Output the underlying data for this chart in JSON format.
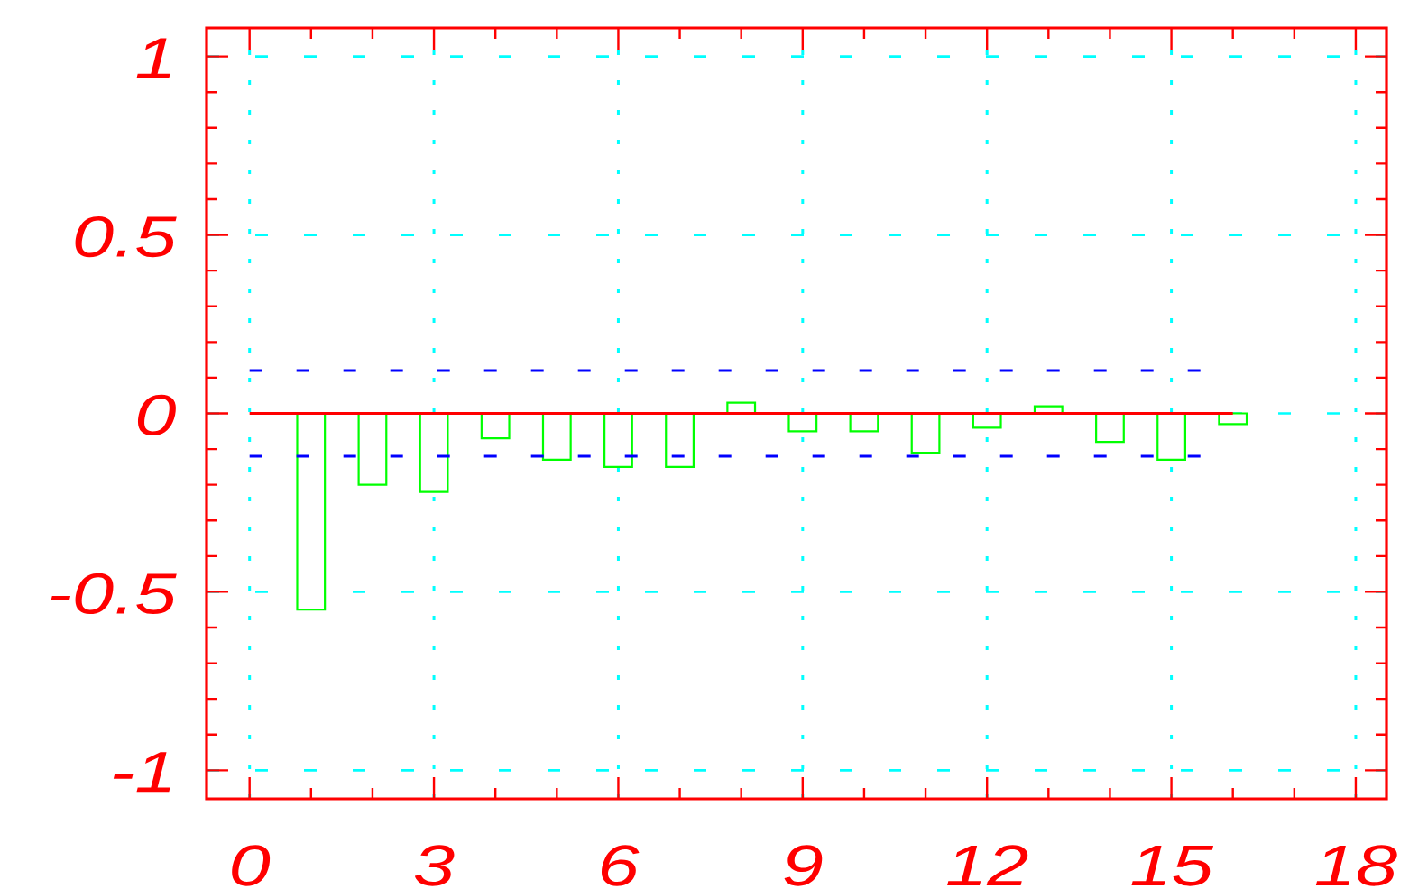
{
  "chart_data": {
    "type": "bar",
    "x": [
      1,
      2,
      3,
      4,
      5,
      6,
      7,
      8,
      9,
      10,
      11,
      12,
      13,
      14,
      15,
      16
    ],
    "values": [
      -0.55,
      -0.2,
      -0.22,
      -0.07,
      -0.13,
      -0.15,
      -0.15,
      0.03,
      -0.05,
      -0.05,
      -0.11,
      -0.04,
      0.02,
      -0.08,
      -0.13,
      -0.03
    ],
    "color": "#00ff00",
    "xlim": [
      -0.7,
      18.5
    ],
    "ylim": [
      -1.08,
      1.08
    ],
    "xticks": [
      0,
      3,
      6,
      9,
      12,
      15,
      18
    ],
    "yticks": [
      -1,
      -0.5,
      0,
      0.5,
      1
    ],
    "grid": true,
    "ref_lines": [
      {
        "axis": "y",
        "value": 0,
        "color": "#ff0000",
        "line_style": "solid"
      },
      {
        "axis": "y",
        "value": 0.12,
        "color": "#0000ff",
        "line_style": "dashed"
      },
      {
        "axis": "y",
        "value": -0.12,
        "color": "#0000ff",
        "line_style": "dashed"
      }
    ]
  }
}
